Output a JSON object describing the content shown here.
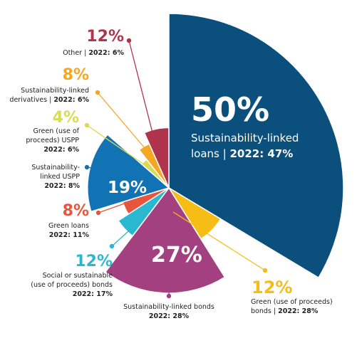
{
  "chart_data": {
    "type": "pie",
    "slices": [
      {
        "key": "sll",
        "percent": "50%",
        "value": 50,
        "name": "Sustainability-linked loans",
        "label_line1": "Sustainability-linked",
        "label_line2_prefix": "loans | ",
        "label_2022": "2022: 47%",
        "color": "#0b4f7c"
      },
      {
        "key": "green_bonds",
        "percent": "12%",
        "value": 12,
        "name": "Green (use of proceeds) bonds",
        "label_line1": "Green (use of proceeds)",
        "label_line2_prefix": "bonds | ",
        "label_2022": "2022: 28%",
        "color": "#f6bd17"
      },
      {
        "key": "slb",
        "percent": "27%",
        "value": 27,
        "name": "Sustainability-linked bonds",
        "label_line1": "Sustainability-linked bonds",
        "label_2022": "2022: 28%",
        "color": "#a3407f"
      },
      {
        "key": "social",
        "percent": "12%",
        "value": 12,
        "name": "Social or sustainable (use of proceeds) bonds",
        "label_line1": "Social or sustainable",
        "label_line2": "(use of proceeds) bonds",
        "label_2022": "2022: 17%",
        "color": "#29b8d0"
      },
      {
        "key": "green_loans",
        "percent": "8%",
        "value": 8,
        "name": "Green loans",
        "label_line1": "Green loans",
        "label_2022": "2022: 11%",
        "color": "#e8553d"
      },
      {
        "key": "sl_uspp",
        "percent": "19%",
        "value": 19,
        "name": "Sustainability-linked USPP",
        "label_line1": "Sustainability-",
        "label_line2": "linked USPP",
        "label_2022": "2022: 8%",
        "color": "#1273b4"
      },
      {
        "key": "green_uspp",
        "percent": "4%",
        "value": 4,
        "name": "Green (use of proceeds) USPP",
        "label_line1": "Green (use of",
        "label_line2": "proceeds) USPP",
        "label_2022": "2022: 6%",
        "color": "#d9db52"
      },
      {
        "key": "sl_deriv",
        "percent": "8%",
        "value": 8,
        "name": "Sustainability-linked derivatives",
        "label_line1": "Sustainability-linked",
        "label_line2_prefix": "derivatives | ",
        "label_2022": "2022: 6%",
        "color": "#f5a623"
      },
      {
        "key": "other",
        "percent": "12%",
        "value": 12,
        "name": "Other",
        "label_line1_prefix": "Other | ",
        "label_2022": "2022: 6%",
        "color": "#b0334d"
      }
    ]
  }
}
